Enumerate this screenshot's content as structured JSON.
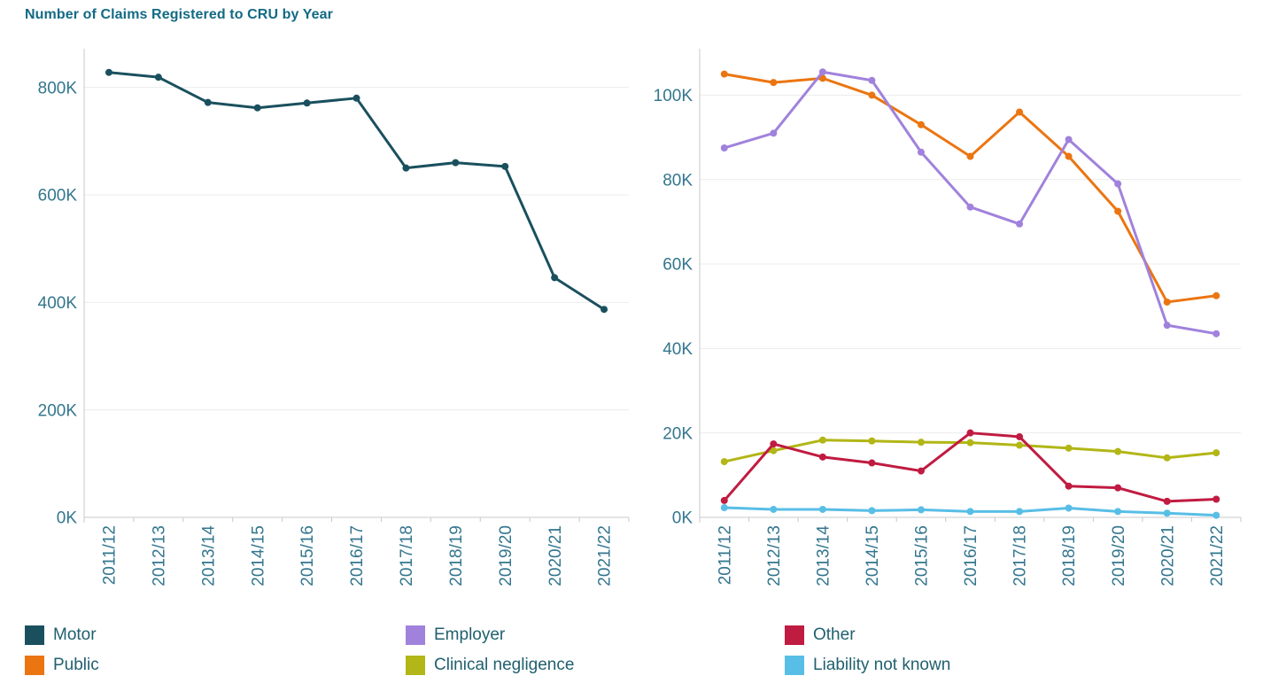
{
  "page": {
    "title": "Number of Claims Registered to CRU by Year"
  },
  "chart_data": [
    {
      "type": "line",
      "title": "Number of Claims Registered to CRU by Year",
      "xlabel": "",
      "ylabel": "",
      "categories": [
        "2011/12",
        "2012/13",
        "2013/14",
        "2014/15",
        "2015/16",
        "2016/17",
        "2017/18",
        "2018/19",
        "2019/20",
        "2020/21",
        "2021/22"
      ],
      "series": [
        {
          "name": "Motor",
          "color": "#1a505e",
          "values": [
            828000,
            819000,
            772000,
            762000,
            771000,
            780000,
            650000,
            660000,
            653000,
            446000,
            387000
          ]
        }
      ],
      "ylim": [
        0,
        872000
      ],
      "yticks": [
        0,
        200000,
        400000,
        600000,
        800000
      ],
      "ytick_labels": [
        "0K",
        "200K",
        "400K",
        "600K",
        "800K"
      ],
      "grid": true,
      "legend_position": "bottom"
    },
    {
      "type": "line",
      "title": "",
      "xlabel": "",
      "ylabel": "",
      "categories": [
        "2011/12",
        "2012/13",
        "2013/14",
        "2014/15",
        "2015/16",
        "2016/17",
        "2017/18",
        "2018/19",
        "2019/20",
        "2020/21",
        "2021/22"
      ],
      "series": [
        {
          "name": "Public",
          "color": "#eb7511",
          "values": [
            105000,
            103000,
            104000,
            100000,
            93000,
            85500,
            96000,
            85500,
            72500,
            51000,
            52500
          ]
        },
        {
          "name": "Employer",
          "color": "#a082dc",
          "values": [
            87500,
            91000,
            105500,
            103500,
            86500,
            73500,
            69500,
            89500,
            79000,
            45500,
            43500
          ]
        },
        {
          "name": "Clinical negligence",
          "color": "#b2b616",
          "values": [
            13200,
            15800,
            18300,
            18100,
            17800,
            17700,
            17100,
            16400,
            15600,
            14100,
            15300
          ]
        },
        {
          "name": "Other",
          "color": "#c01b41",
          "values": [
            4000,
            17400,
            14300,
            12900,
            11000,
            20000,
            19100,
            7400,
            7000,
            3800,
            4300
          ]
        },
        {
          "name": "Liability not known",
          "color": "#58bee6",
          "values": [
            2300,
            1900,
            1900,
            1600,
            1800,
            1400,
            1400,
            2200,
            1400,
            1000,
            500
          ]
        }
      ],
      "ylim": [
        0,
        111000
      ],
      "yticks": [
        0,
        20000,
        40000,
        60000,
        80000,
        100000
      ],
      "ytick_labels": [
        "0K",
        "20K",
        "40K",
        "60K",
        "80K",
        "100K"
      ],
      "grid": true,
      "legend_position": "bottom"
    }
  ],
  "legend": {
    "items": [
      {
        "label": "Motor",
        "color": "#1a505e"
      },
      {
        "label": "Public",
        "color": "#eb7511"
      },
      {
        "label": "Employer",
        "color": "#a082dc"
      },
      {
        "label": "Clinical negligence",
        "color": "#b2b616"
      },
      {
        "label": "Other",
        "color": "#c01b41"
      },
      {
        "label": "Liability not known",
        "color": "#58bee6"
      }
    ]
  },
  "colors": {
    "title_text": "#136a84",
    "axis_text": "#33768e",
    "legend_text": "#20606e",
    "gridline": "#ebebeb",
    "axis_line": "#c8c8c8",
    "background": "#ffffff"
  }
}
